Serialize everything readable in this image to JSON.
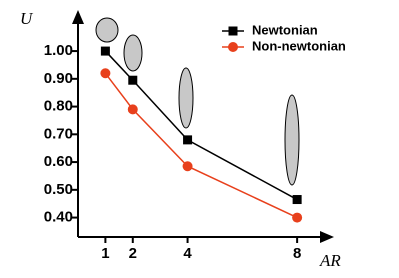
{
  "chart_data": {
    "type": "line",
    "x_label": "AR",
    "y_label": "U",
    "x": [
      1,
      2,
      4,
      8
    ],
    "xlim": [
      0,
      9.2
    ],
    "xticks": [
      1,
      2,
      4,
      8
    ],
    "ylim": [
      0.33,
      1.13
    ],
    "yticks": [
      {
        "value": 0.4,
        "label": "0.40"
      },
      {
        "value": 0.5,
        "label": "0.50"
      },
      {
        "value": 0.6,
        "label": "0.60"
      },
      {
        "value": 0.7,
        "label": "0.70"
      },
      {
        "value": 0.8,
        "label": "0.80"
      },
      {
        "value": 0.9,
        "label": "0.90"
      },
      {
        "value": 1.0,
        "label": "1.00"
      }
    ],
    "legend": "top-right",
    "series": [
      {
        "name": "Newtonian",
        "color": "#000000",
        "marker": "square",
        "values": [
          1.0,
          0.895,
          0.68,
          0.465
        ]
      },
      {
        "name": "Non-newtonian",
        "color": "#e8401c",
        "marker": "circle",
        "values": [
          0.92,
          0.79,
          0.585,
          0.4
        ]
      }
    ]
  }
}
